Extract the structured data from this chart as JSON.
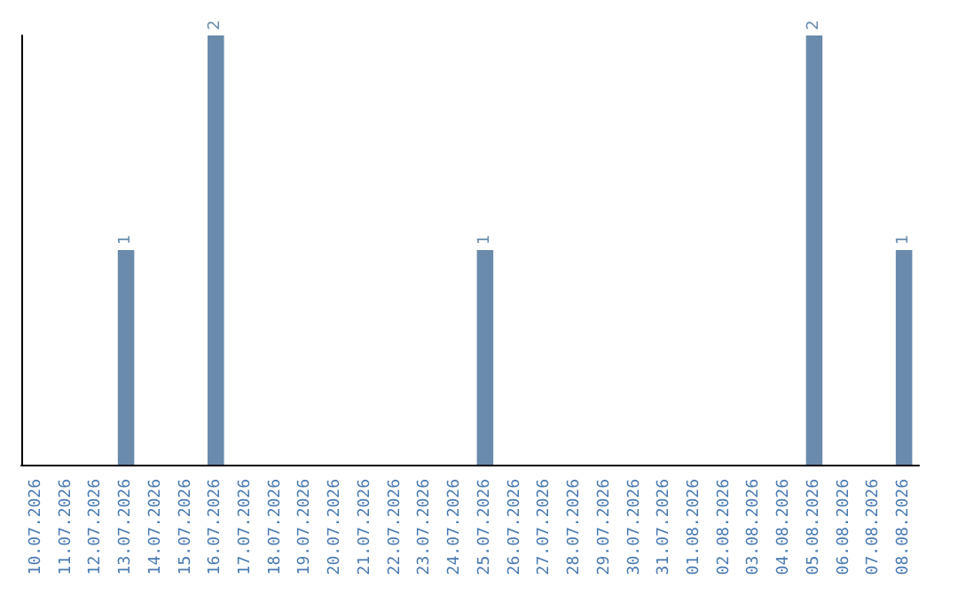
{
  "chart_data": {
    "type": "bar",
    "categories": [
      "10.07.2026",
      "11.07.2026",
      "12.07.2026",
      "13.07.2026",
      "14.07.2026",
      "15.07.2026",
      "16.07.2026",
      "17.07.2026",
      "18.07.2026",
      "19.07.2026",
      "20.07.2026",
      "21.07.2026",
      "22.07.2026",
      "23.07.2026",
      "24.07.2026",
      "25.07.2026",
      "26.07.2026",
      "27.07.2026",
      "28.07.2026",
      "29.07.2026",
      "30.07.2026",
      "31.07.2026",
      "01.08.2026",
      "02.08.2026",
      "03.08.2026",
      "04.08.2026",
      "05.08.2026",
      "06.08.2026",
      "07.08.2026",
      "08.08.2026"
    ],
    "values": [
      0,
      0,
      0,
      1,
      0,
      0,
      2,
      0,
      0,
      0,
      0,
      0,
      0,
      0,
      0,
      1,
      0,
      0,
      0,
      0,
      0,
      0,
      0,
      0,
      0,
      0,
      2,
      0,
      0,
      1
    ],
    "value_labels": [
      null,
      null,
      null,
      "1",
      null,
      null,
      "2",
      null,
      null,
      null,
      null,
      null,
      null,
      null,
      null,
      "1",
      null,
      null,
      null,
      null,
      null,
      null,
      null,
      null,
      null,
      null,
      "2",
      null,
      null,
      "1"
    ],
    "color": "#6a8bab",
    "grid": false
  }
}
